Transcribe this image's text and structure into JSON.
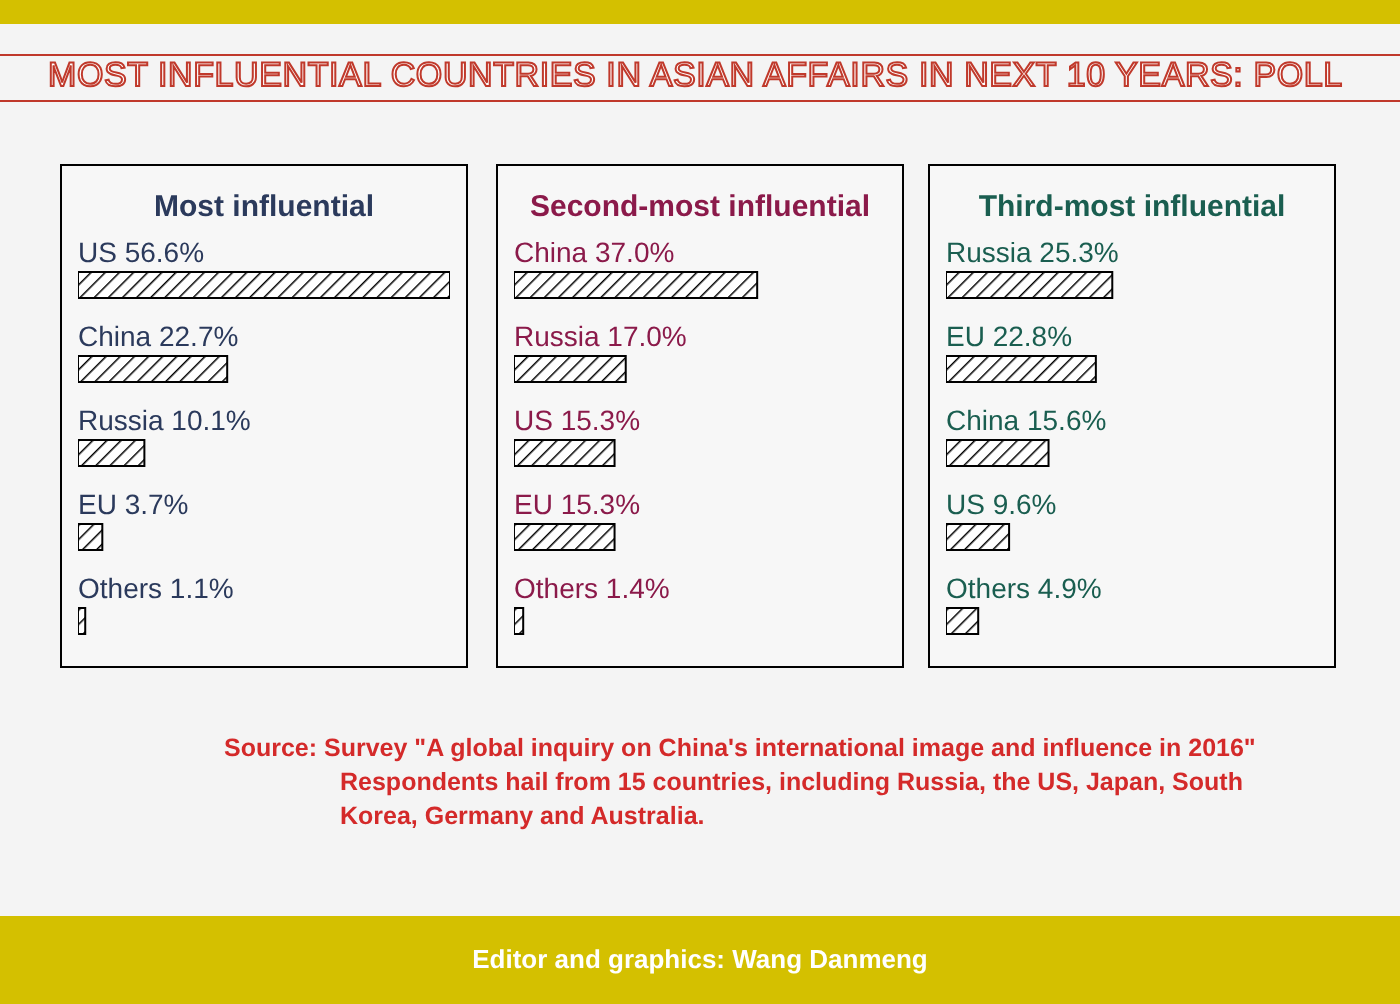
{
  "chart_data": [
    {
      "type": "other",
      "title": "MOST INFLUENTIAL COUNTRIES IN ASIAN AFFAIRS IN NEXT 10 YEARS: POLL",
      "annotations": [
        "Source:  Survey \"A global inquiry on China's international image and influence in 2016\"",
        "Respondents hail from 15 countries, including Russia, the US, Japan, South Korea, Germany and Australia.",
        "Editor and graphics: Wang Danmeng"
      ]
    },
    {
      "type": "bar",
      "orientation": "horizontal",
      "title": "Most influential",
      "categories": [
        "US",
        "China",
        "Russia",
        "EU",
        "Others"
      ],
      "values": [
        56.6,
        22.7,
        10.1,
        3.7,
        1.1
      ],
      "value_labels": [
        "56.6%",
        "22.7%",
        "10.1%",
        "3.7%",
        "1.1%"
      ],
      "color": "#000000",
      "tick_labels": false
    },
    {
      "type": "bar",
      "orientation": "horizontal",
      "title": "Second-most influential",
      "categories": [
        "China",
        "Russia",
        "US",
        "EU",
        "Others"
      ],
      "values": [
        37.0,
        17.0,
        15.3,
        15.3,
        1.4
      ],
      "value_labels": [
        "37.0%",
        "17.0%",
        "15.3%",
        "15.3%",
        "1.4%"
      ],
      "color": "#000000",
      "tick_labels": false
    },
    {
      "type": "bar",
      "orientation": "horizontal",
      "title": "Third-most influential",
      "categories": [
        "Russia",
        "EU",
        "China",
        "US",
        "Others"
      ],
      "values": [
        25.3,
        22.8,
        15.6,
        9.6,
        4.9
      ],
      "value_labels": [
        "25.3%",
        "22.8%",
        "15.6%",
        "9.6%",
        "4.9%"
      ],
      "color": "#000000",
      "tick_labels": false
    }
  ]
}
